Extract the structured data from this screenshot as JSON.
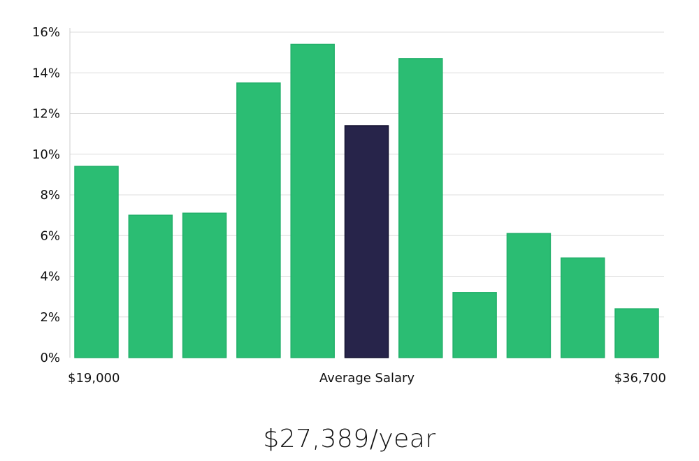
{
  "chart_data": {
    "type": "bar",
    "title": "",
    "xlabel": "Average Salary",
    "ylabel": "",
    "x_min_label": "$19,000",
    "x_max_label": "$36,700",
    "ylim": [
      0,
      16
    ],
    "y_ticks": [
      "0%",
      "2%",
      "4%",
      "6%",
      "8%",
      "10%",
      "12%",
      "14%",
      "16%"
    ],
    "y_tick_values": [
      0,
      2,
      4,
      6,
      8,
      10,
      12,
      14,
      16
    ],
    "values": [
      9.4,
      7.0,
      7.1,
      13.5,
      15.4,
      11.4,
      14.7,
      3.2,
      6.1,
      4.9,
      2.4
    ],
    "highlight_index": 5,
    "colors": {
      "bar": "#2bbd73",
      "bar_edge": "#22b06a",
      "highlight": "#27244a",
      "highlight_edge": "#141230",
      "grid": "#dddddd",
      "axis": "#cccccc"
    },
    "grid": true
  },
  "summary": {
    "salary": "$27,389/year"
  }
}
